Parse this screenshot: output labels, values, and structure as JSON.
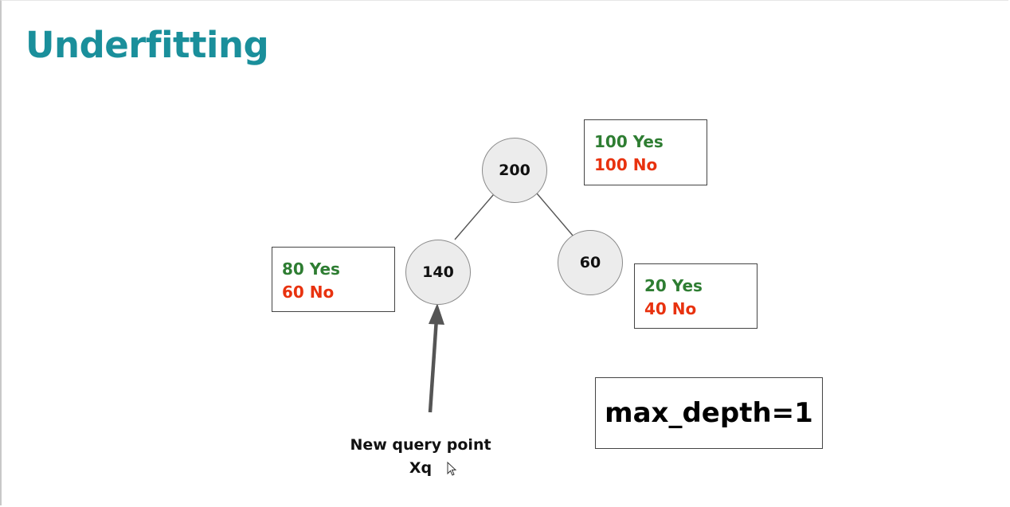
{
  "slide": {
    "title": "Underfitting"
  },
  "tree": {
    "root": {
      "value": "200",
      "counts": {
        "yes": "100 Yes",
        "no": "100 No"
      }
    },
    "left": {
      "value": "140",
      "counts": {
        "yes": "80 Yes",
        "no": "60 No"
      }
    },
    "right": {
      "value": "60",
      "counts": {
        "yes": "20 Yes",
        "no": "40 No"
      }
    }
  },
  "parameter": {
    "label": "max_depth=1"
  },
  "query": {
    "line1": "New query point",
    "line2": "Xq"
  },
  "colors": {
    "title": "#1a8f9b",
    "yes": "#2e7d32",
    "no": "#e8320f"
  }
}
